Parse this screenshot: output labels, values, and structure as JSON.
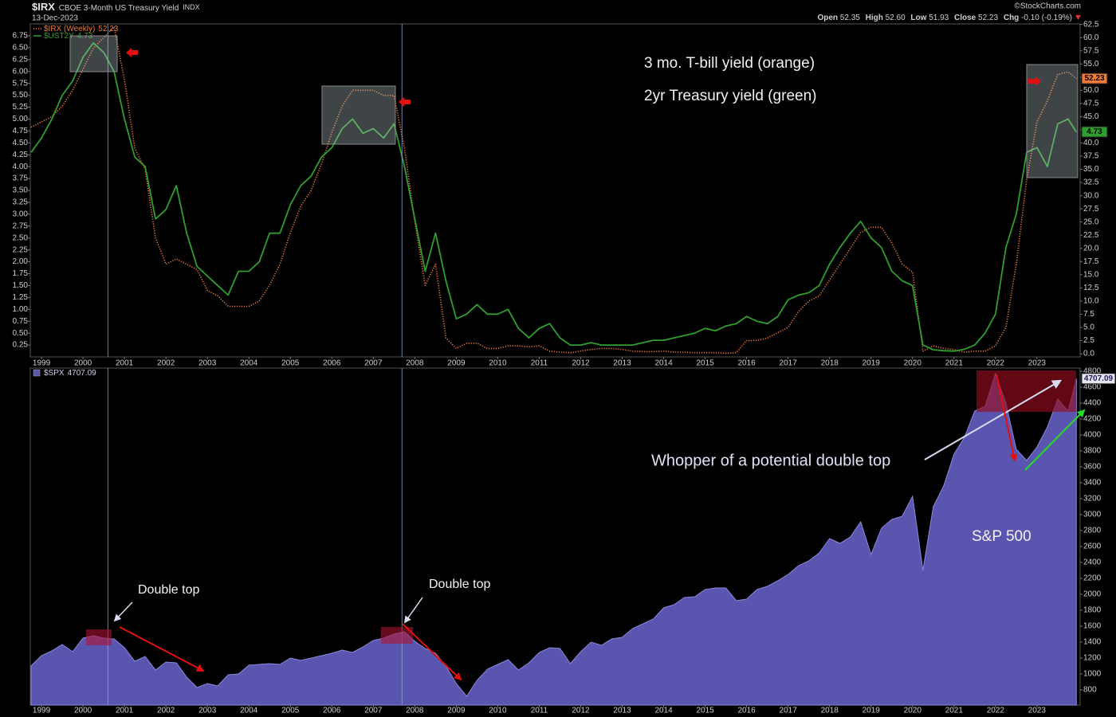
{
  "chart_data": [
    {
      "type": "line",
      "title": "$IRX",
      "subtitle": "CBOE 3-Month US Treasury Yield",
      "exchange": "INDX",
      "date": "13-Dec-2023",
      "source": "©StockCharts.com",
      "quote": [
        {
          "label": "Open",
          "value": "52.35"
        },
        {
          "label": "High",
          "value": "52.60"
        },
        {
          "label": "Low",
          "value": "51.93"
        },
        {
          "label": "Close",
          "value": "52.23"
        },
        {
          "label": "Chg",
          "value": "-0.10 (-0.19%)"
        }
      ],
      "annotations": [
        "3 mo. T-bill yield (orange)",
        "2yr Treasury yield (green)"
      ],
      "xlim": [
        1998.73,
        2024.04
      ],
      "xticks": [
        1999,
        2000,
        2001,
        2002,
        2003,
        2004,
        2005,
        2006,
        2007,
        2008,
        2009,
        2010,
        2011,
        2012,
        2013,
        2014,
        2015,
        2016,
        2017,
        2018,
        2019,
        2020,
        2021,
        2022,
        2023
      ],
      "ylim": [
        0,
        7
      ],
      "yticks": [
        0.25,
        {
          "value": 0.5,
          "label": "0.50"
        },
        0.75,
        {
          "value": 1,
          "label": "1.00"
        },
        1.25,
        {
          "value": 1.5,
          "label": "1.50"
        },
        1.75,
        {
          "value": 2,
          "label": "2.00"
        },
        2.25,
        {
          "value": 2.5,
          "label": "2.50"
        },
        2.75,
        {
          "value": 3,
          "label": "3.00"
        },
        3.25,
        {
          "value": 3.5,
          "label": "3.50"
        },
        3.75,
        {
          "value": 4,
          "label": "4.00"
        },
        4.25,
        {
          "value": 4.5,
          "label": "4.50"
        },
        4.75,
        {
          "value": 5,
          "label": "5.00"
        },
        5.25,
        {
          "value": 5.5,
          "label": "5.50"
        },
        5.75,
        {
          "value": 6,
          "label": "6.00"
        },
        6.25,
        {
          "value": 6.5,
          "label": "6.50"
        },
        6.75
      ],
      "y2lim": [
        -0.6,
        62.6
      ],
      "y2ticks": [
        {
          "value": 0,
          "label": "0.0"
        },
        2.5,
        {
          "value": 5,
          "label": "5.0"
        },
        7.5,
        {
          "value": 10,
          "label": "10.0"
        },
        12.5,
        {
          "value": 15,
          "label": "15.0"
        },
        17.5,
        {
          "value": 20,
          "label": "20.0"
        },
        22.5,
        {
          "value": 25,
          "label": "25.0"
        },
        27.5,
        {
          "value": 30,
          "label": "30.0"
        },
        32.5,
        {
          "value": 35,
          "label": "35.0"
        },
        37.5,
        {
          "value": 40,
          "label": "40.0"
        },
        42.5,
        {
          "value": 45,
          "label": "45.0"
        },
        47.5,
        {
          "value": 50,
          "label": "50.0"
        },
        52.5,
        {
          "value": 55,
          "label": "55.0"
        },
        57.5,
        {
          "value": 60,
          "label": "60.0"
        },
        62.5
      ],
      "vlines": [
        2000.6,
        2007.69
      ],
      "x": [
        1998.75,
        1999,
        1999.25,
        1999.5,
        1999.75,
        2000,
        2000.25,
        2000.5,
        2000.75,
        2001,
        2001.25,
        2001.5,
        2001.75,
        2002,
        2002.25,
        2002.5,
        2002.75,
        2003,
        2003.25,
        2003.5,
        2003.75,
        2004,
        2004.25,
        2004.5,
        2004.75,
        2005,
        2005.25,
        2005.5,
        2005.75,
        2006,
        2006.25,
        2006.5,
        2006.75,
        2007,
        2007.25,
        2007.5,
        2007.75,
        2008,
        2008.25,
        2008.5,
        2008.75,
        2009,
        2009.25,
        2009.5,
        2009.75,
        2010,
        2010.25,
        2010.5,
        2010.75,
        2011,
        2011.25,
        2011.5,
        2011.75,
        2012,
        2012.25,
        2012.5,
        2012.75,
        2013,
        2013.25,
        2013.5,
        2013.75,
        2014,
        2014.25,
        2014.5,
        2014.75,
        2015,
        2015.25,
        2015.5,
        2015.75,
        2016,
        2016.25,
        2016.5,
        2016.75,
        2017,
        2017.25,
        2017.5,
        2017.75,
        2018,
        2018.25,
        2018.5,
        2018.75,
        2019,
        2019.25,
        2019.5,
        2019.75,
        2020,
        2020.25,
        2020.5,
        2020.75,
        2021,
        2021.25,
        2021.5,
        2021.75,
        2022,
        2022.25,
        2022.5,
        2022.75,
        2023,
        2023.25,
        2023.5,
        2023.75,
        2023.95
      ],
      "series": [
        {
          "name": "$IRX (Weekly)",
          "color": "#f07a33",
          "line_style": "dotted",
          "axis": "y2",
          "last": 52.23,
          "values": [
            43,
            44,
            45,
            47,
            50,
            54,
            58,
            60,
            62,
            52,
            39,
            35,
            22,
            17,
            18,
            17,
            16,
            12,
            11,
            9,
            9,
            9,
            10,
            13,
            17,
            23,
            28,
            31,
            36,
            42,
            47,
            50,
            50,
            50,
            49,
            49,
            39,
            25,
            13,
            17,
            3,
            1,
            2,
            2,
            1,
            1,
            1.5,
            1.5,
            1.3,
            1.5,
            0.5,
            0.3,
            0.2,
            0.5,
            0.8,
            1,
            1,
            0.8,
            0.5,
            0.4,
            0.4,
            0.5,
            0.3,
            0.3,
            0.2,
            0.2,
            0.2,
            0.1,
            0.2,
            2.5,
            2.5,
            3,
            4,
            5,
            8,
            10,
            11,
            14,
            17,
            20,
            23,
            24,
            24,
            21,
            17,
            15.5,
            0.5,
            1.5,
            1,
            0.8,
            0.3,
            0.5,
            0.5,
            1.5,
            5,
            17,
            33,
            44,
            48,
            53,
            53.5,
            52.23
          ]
        },
        {
          "name": "$UST2Y",
          "color": "#2f9e2f",
          "line_style": "solid",
          "axis": "y",
          "last": 4.73,
          "values": [
            4.3,
            4.6,
            5,
            5.5,
            5.8,
            6.3,
            6.6,
            6.4,
            6,
            5,
            4.2,
            4,
            2.9,
            3.1,
            3.6,
            2.6,
            1.9,
            1.7,
            1.5,
            1.3,
            1.8,
            1.8,
            2,
            2.6,
            2.6,
            3.2,
            3.6,
            3.8,
            4.2,
            4.4,
            4.8,
            5,
            4.7,
            4.8,
            4.6,
            4.9,
            4,
            2.9,
            1.8,
            2.6,
            1.6,
            0.8,
            0.9,
            1.1,
            0.9,
            0.9,
            1,
            0.6,
            0.4,
            0.6,
            0.7,
            0.4,
            0.25,
            0.25,
            0.3,
            0.25,
            0.25,
            0.25,
            0.25,
            0.3,
            0.35,
            0.35,
            0.4,
            0.45,
            0.5,
            0.6,
            0.55,
            0.65,
            0.7,
            0.85,
            0.75,
            0.7,
            0.85,
            1.2,
            1.3,
            1.35,
            1.5,
            1.95,
            2.3,
            2.6,
            2.85,
            2.5,
            2.3,
            1.8,
            1.6,
            1.5,
            0.25,
            0.15,
            0.13,
            0.12,
            0.16,
            0.25,
            0.5,
            0.9,
            2.3,
            3,
            4.3,
            4.4,
            4,
            4.9,
            5,
            4.73
          ]
        }
      ]
    },
    {
      "type": "area",
      "annotations": [
        "Double top",
        "Double top",
        "Whopper of a potential double top",
        "S&P 500"
      ],
      "xlim": [
        1998.73,
        2024.04
      ],
      "xticks": [
        1999,
        2000,
        2001,
        2002,
        2003,
        2004,
        2005,
        2006,
        2007,
        2008,
        2009,
        2010,
        2011,
        2012,
        2013,
        2014,
        2015,
        2016,
        2017,
        2018,
        2019,
        2020,
        2021,
        2022,
        2023
      ],
      "ylim": [
        610,
        4840
      ],
      "yticks": [
        800,
        1000,
        1200,
        1400,
        1600,
        1800,
        2000,
        2200,
        2400,
        2600,
        2800,
        3000,
        3200,
        3400,
        3600,
        3800,
        4000,
        4200,
        4400,
        4600,
        4800
      ],
      "y_axis_side": "right",
      "vlines": [
        2000.6,
        2007.69
      ],
      "x": [
        1998.75,
        1999,
        1999.25,
        1999.5,
        1999.75,
        2000,
        2000.25,
        2000.5,
        2000.75,
        2001,
        2001.25,
        2001.5,
        2001.75,
        2002,
        2002.25,
        2002.5,
        2002.75,
        2003,
        2003.25,
        2003.5,
        2003.75,
        2004,
        2004.25,
        2004.5,
        2004.75,
        2005,
        2005.25,
        2005.5,
        2005.75,
        2006,
        2006.25,
        2006.5,
        2006.75,
        2007,
        2007.25,
        2007.5,
        2007.75,
        2008,
        2008.25,
        2008.5,
        2008.75,
        2009,
        2009.25,
        2009.5,
        2009.75,
        2010,
        2010.25,
        2010.5,
        2010.75,
        2011,
        2011.25,
        2011.5,
        2011.75,
        2012,
        2012.25,
        2012.5,
        2012.75,
        2013,
        2013.25,
        2013.5,
        2013.75,
        2014,
        2014.25,
        2014.5,
        2014.75,
        2015,
        2015.25,
        2015.5,
        2015.75,
        2016,
        2016.25,
        2016.5,
        2016.75,
        2017,
        2017.25,
        2017.5,
        2017.75,
        2018,
        2018.25,
        2018.5,
        2018.75,
        2019,
        2019.25,
        2019.5,
        2019.75,
        2020,
        2020.25,
        2020.5,
        2020.75,
        2021,
        2021.25,
        2021.5,
        2021.75,
        2022,
        2022.25,
        2022.5,
        2022.75,
        2023,
        2023.25,
        2023.5,
        2023.75,
        2023.95
      ],
      "series": [
        {
          "name": "$SPX",
          "color": "#5a56b0",
          "last": 4707.09,
          "values": [
            1100,
            1230,
            1290,
            1370,
            1280,
            1450,
            1480,
            1450,
            1440,
            1330,
            1160,
            1220,
            1050,
            1150,
            1140,
            960,
            830,
            880,
            850,
            990,
            1000,
            1110,
            1120,
            1130,
            1120,
            1200,
            1170,
            1200,
            1230,
            1260,
            1300,
            1270,
            1340,
            1420,
            1450,
            1500,
            1530,
            1410,
            1320,
            1260,
            1100,
            880,
            720,
            920,
            1060,
            1120,
            1180,
            1050,
            1140,
            1270,
            1330,
            1320,
            1130,
            1280,
            1400,
            1360,
            1440,
            1460,
            1570,
            1630,
            1690,
            1830,
            1870,
            1960,
            1970,
            2060,
            2080,
            2080,
            1920,
            1940,
            2060,
            2100,
            2170,
            2250,
            2360,
            2420,
            2520,
            2700,
            2640,
            2720,
            2910,
            2500,
            2830,
            2940,
            2980,
            3230,
            2300,
            3100,
            3360,
            3760,
            3970,
            4300,
            4360,
            4770,
            4400,
            3820,
            3680,
            3850,
            4100,
            4450,
            4300,
            4707.09
          ]
        }
      ]
    }
  ]
}
